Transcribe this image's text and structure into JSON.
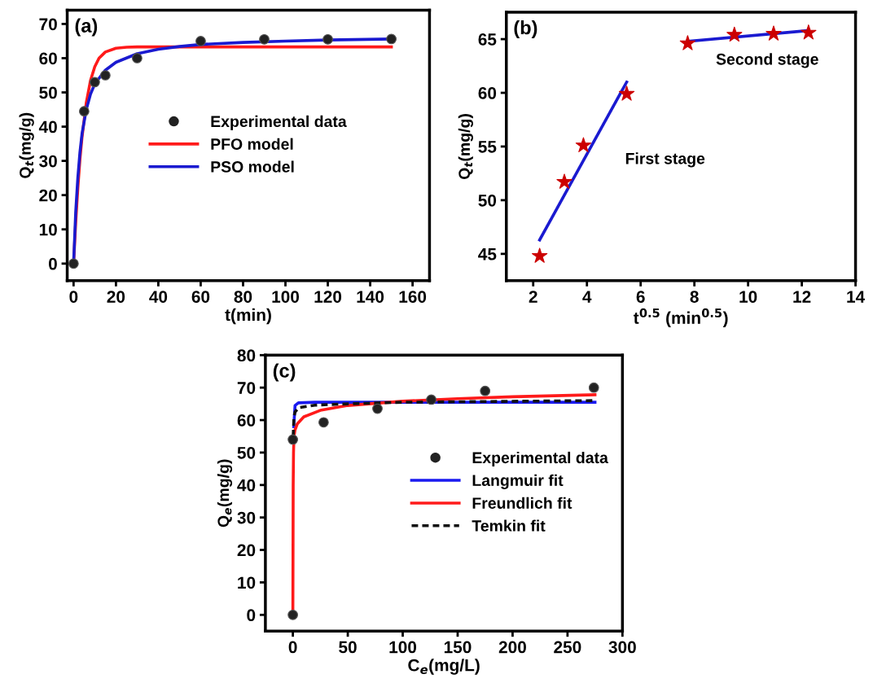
{
  "chart_data": [
    {
      "type": "scatter",
      "title": "(a)",
      "xlabel": "t(min)",
      "ylabel": "Q$_{t}$(mg/g)",
      "xlim": [
        -3,
        168
      ],
      "ylim": [
        -5,
        74
      ],
      "xticks": [
        0,
        20,
        40,
        60,
        80,
        100,
        120,
        140,
        160
      ],
      "yticks": [
        0,
        10,
        20,
        30,
        40,
        50,
        60,
        70
      ],
      "grid": false,
      "legend": "center",
      "series": [
        {
          "name": "Experimental data",
          "marker": "circle",
          "color": "#222222",
          "x": [
            0,
            5,
            10,
            15,
            30,
            60,
            90,
            120,
            150
          ],
          "values": [
            0,
            44.5,
            53,
            55,
            60,
            65,
            65.5,
            65.5,
            65.6
          ]
        },
        {
          "name": "PFO model",
          "type": "line",
          "line_style": "solid",
          "color": "#ff1a1a",
          "x": [
            0,
            1,
            2,
            3,
            4,
            6,
            8,
            10,
            12,
            15,
            20,
            25,
            30,
            40,
            60,
            100,
            150
          ],
          "values": [
            0,
            12,
            22,
            30.5,
            37,
            47,
            53.5,
            57.5,
            60,
            61.8,
            62.9,
            63.2,
            63.3,
            63.3,
            63.3,
            63.3,
            63.3
          ]
        },
        {
          "name": "PSO model",
          "type": "line",
          "line_style": "solid",
          "color": "#1a1ad0",
          "x": [
            0,
            1,
            2,
            3,
            4,
            6,
            8,
            10,
            15,
            20,
            30,
            40,
            50,
            60,
            80,
            100,
            120,
            150
          ],
          "values": [
            0,
            15,
            25,
            32.5,
            38,
            45,
            49.5,
            52.5,
            56.5,
            58.8,
            61.3,
            62.6,
            63.4,
            64,
            64.6,
            65,
            65.3,
            65.6
          ]
        }
      ]
    },
    {
      "type": "scatter",
      "title": "(b)",
      "xlabel": "t$^{0.5}$ (min$^{0.5}$)",
      "ylabel": "Q$_{t}$(mg/g)",
      "xlim": [
        1,
        14
      ],
      "ylim": [
        42.5,
        67.5
      ],
      "xticks": [
        2,
        4,
        6,
        8,
        10,
        12,
        14
      ],
      "yticks": [
        45,
        50,
        55,
        60,
        65
      ],
      "grid": false,
      "annotations": [
        "First stage",
        "Second stage"
      ],
      "series": [
        {
          "marker": "star",
          "color": "#cc0000",
          "x": [
            2.24,
            3.16,
            3.87,
            5.48,
            7.75,
            9.49,
            10.95,
            12.25
          ],
          "values": [
            44.8,
            51.7,
            55.1,
            59.9,
            64.6,
            65.4,
            65.5,
            65.6
          ]
        },
        {
          "type": "line",
          "line_style": "solid",
          "color": "#1a1ad0",
          "x": [
            2.24,
            5.48
          ],
          "values": [
            46.3,
            61.0
          ]
        },
        {
          "type": "line",
          "line_style": "solid",
          "color": "#1a1ad0",
          "x": [
            7.75,
            12.25
          ],
          "values": [
            64.8,
            65.8
          ]
        }
      ]
    },
    {
      "type": "scatter",
      "title": "(c)",
      "xlabel": "C$_{e}$(mg/L)",
      "ylabel": "Q$_{e}$(mg/g)",
      "xlim": [
        -25,
        300
      ],
      "ylim": [
        -5,
        80
      ],
      "xticks": [
        0,
        50,
        100,
        150,
        200,
        250,
        300
      ],
      "yticks": [
        0,
        10,
        20,
        30,
        40,
        50,
        60,
        70,
        80
      ],
      "grid": false,
      "legend": "center right",
      "series": [
        {
          "name": "Experimental data",
          "marker": "circle",
          "color": "#222222",
          "x": [
            0,
            0,
            28,
            77,
            126,
            175,
            274
          ],
          "values": [
            0,
            54,
            59.3,
            63.5,
            66.3,
            69,
            70
          ]
        },
        {
          "name": "Langmuir fit",
          "type": "line",
          "line_style": "solid",
          "color": "#1a1af0",
          "x": [
            0.8,
            2,
            5,
            20,
            100,
            275
          ],
          "values": [
            58,
            64.5,
            65.3,
            65.5,
            65.5,
            65.5
          ]
        },
        {
          "name": "Freundlich fit",
          "type": "line",
          "line_style": "solid",
          "color": "#ff1a1a",
          "x": [
            0,
            0.3,
            0.6,
            1,
            2,
            4,
            10,
            25,
            50,
            100,
            150,
            200,
            275
          ],
          "values": [
            0,
            40,
            50,
            55,
            57,
            58.8,
            61,
            63,
            64.5,
            65.8,
            66.6,
            67.2,
            67.8
          ]
        },
        {
          "name": "Temkin fit",
          "type": "line",
          "line_style": "dashed",
          "color": "#111111",
          "x": [
            0.3,
            1,
            2,
            5,
            20,
            50,
            100,
            275
          ],
          "values": [
            55,
            61,
            62.5,
            63.8,
            64.6,
            65,
            65.5,
            66
          ]
        }
      ]
    }
  ]
}
